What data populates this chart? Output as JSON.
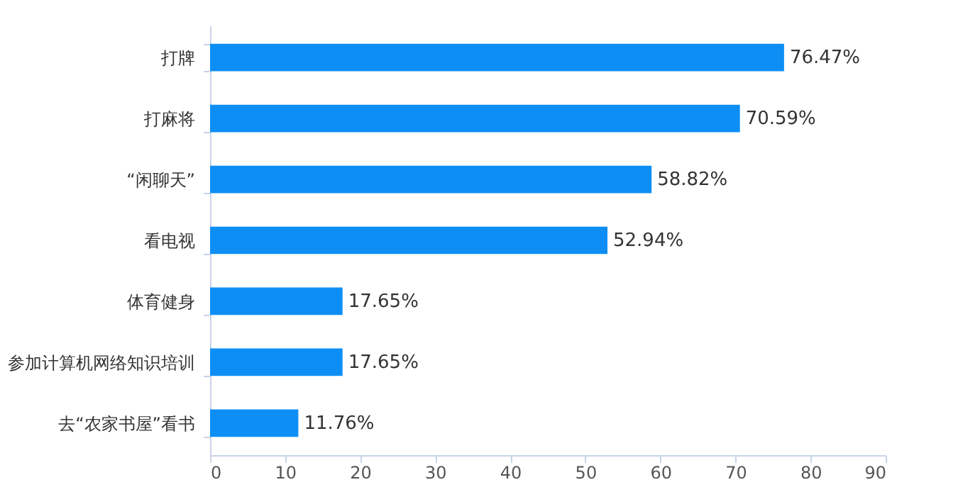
{
  "chart_data": {
    "type": "bar",
    "orientation": "horizontal",
    "categories": [
      "打牌",
      "打麻将",
      "“闲聊天”",
      "看电视",
      "体育健身",
      "参加计算机网络知识培训",
      "去“农家书屋”看书"
    ],
    "values": [
      76.47,
      70.59,
      58.82,
      52.94,
      17.65,
      17.65,
      11.76
    ],
    "value_labels": [
      "76.47%",
      "70.59%",
      "58.82%",
      "52.94%",
      "17.65%",
      "17.65%",
      "11.76%"
    ],
    "color": "#0d8ef5",
    "xlim": [
      0,
      90
    ],
    "xticks": [
      0,
      10,
      20,
      30,
      40,
      50,
      60,
      70,
      80,
      90
    ],
    "grid": false
  }
}
